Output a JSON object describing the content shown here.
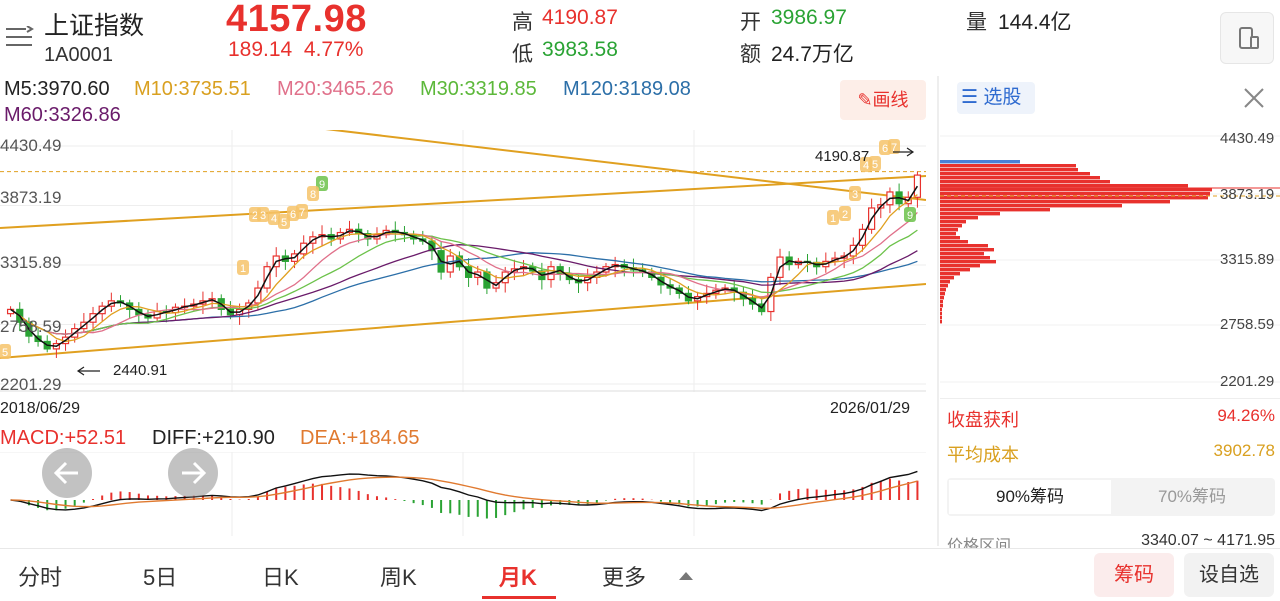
{
  "header": {
    "name": "上证指数",
    "code": "1A0001",
    "price": "4157.98",
    "change": "189.14",
    "change_pct": "4.77%",
    "high_label": "高",
    "high": "4190.87",
    "low_label": "低",
    "low": "3983.58",
    "open_label": "开",
    "open": "3986.97",
    "amount_label": "额",
    "amount": "24.7万亿",
    "volume_label": "量",
    "volume": "144.4亿"
  },
  "ma": {
    "m5": "M5:3970.60",
    "m10": "M10:3735.51",
    "m20": "M20:3465.26",
    "m30": "M30:3319.85",
    "m120": "M120:3189.08",
    "m60": "M60:3326.86",
    "colors": {
      "m5": "#111111",
      "m10": "#e0a020",
      "m20": "#e0708a",
      "m30": "#6cc24a",
      "m120": "#2c6fa8",
      "m60": "#6a1b6a"
    }
  },
  "toolbar": {
    "draw_label": "画线"
  },
  "chart_data": {
    "type": "candlestick",
    "y_axis_labels": [
      "4430.49",
      "3873.19",
      "3315.89",
      "2758.59",
      "2201.29"
    ],
    "ylim": [
      2201.29,
      4430.49
    ],
    "start_date": "2018/06/29",
    "end_date": "2026/01/29",
    "annotations": {
      "high_mark": "4190.87",
      "low_mark": "2440.91"
    },
    "close_series": [
      2900,
      2780,
      2650,
      2600,
      2530,
      2580,
      2640,
      2720,
      2780,
      2860,
      2930,
      2980,
      2960,
      2900,
      2850,
      2820,
      2880,
      2870,
      2920,
      2930,
      2950,
      2980,
      3000,
      2900,
      2850,
      2900,
      2960,
      3100,
      3300,
      3400,
      3350,
      3420,
      3520,
      3580,
      3600,
      3560,
      3620,
      3650,
      3610,
      3560,
      3600,
      3640,
      3620,
      3600,
      3560,
      3540,
      3450,
      3250,
      3400,
      3300,
      3200,
      3250,
      3100,
      3150,
      3250,
      3280,
      3300,
      3260,
      3180,
      3300,
      3230,
      3180,
      3150,
      3200,
      3250,
      3300,
      3320,
      3290,
      3270,
      3250,
      3200,
      3130,
      3100,
      3050,
      2980,
      3020,
      3050,
      3080,
      3100,
      3060,
      3000,
      2950,
      2880,
      3200,
      3390,
      3320,
      3350,
      3340,
      3300,
      3350,
      3380,
      3400,
      3500,
      3650,
      3850,
      3880,
      4000,
      3890,
      3950,
      4157.98
    ]
  },
  "macd": {
    "macd": "MACD:+52.51",
    "diff": "DIFF:+210.90",
    "dea": "DEA:+184.65"
  },
  "side": {
    "pick_label": "选股",
    "price_labels": [
      "4430.49",
      "3873.19",
      "3315.89",
      "2758.59",
      "2201.29"
    ],
    "profit_label": "收盘获利",
    "profit_value": "94.26%",
    "cost_label": "平均成本",
    "cost_value": "3902.78",
    "chip_tab_1": "90%筹码",
    "chip_tab_2": "70%筹码",
    "range_label": "价格区间",
    "range_value": "3340.07 ~ 4171.95"
  },
  "nav": {
    "tabs": [
      "分时",
      "5日",
      "日K",
      "周K",
      "月K",
      "更多"
    ],
    "active": "月K",
    "chip_button": "筹码",
    "watch_button": "设自选"
  }
}
